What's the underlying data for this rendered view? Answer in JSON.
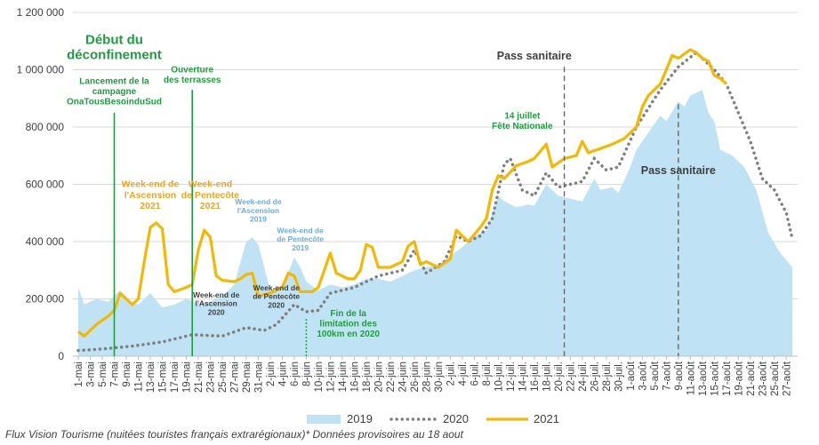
{
  "chart_data": {
    "type": "line",
    "ylim": [
      0,
      1200000
    ],
    "yticks": [
      "0",
      "200 000",
      "400 000",
      "600 000",
      "800 000",
      "1 000 000",
      "1 200 000"
    ],
    "ytick_values": [
      0,
      200000,
      400000,
      600000,
      800000,
      1000000,
      1200000
    ],
    "x_start": "2021-05-01",
    "x_end": "2021-08-28",
    "xtick_labels": [
      "1-mai",
      "3-mai",
      "5-mai",
      "7-mai",
      "9-mai",
      "11-mai",
      "13-mai",
      "15-mai",
      "17-mai",
      "19-mai",
      "21-mai",
      "23-mai",
      "25-mai",
      "27-mai",
      "29-mai",
      "31-mai",
      "2-juin",
      "4-juin",
      "6-juin",
      "8-juin",
      "10-juin",
      "12-juin",
      "14-juin",
      "16-juin",
      "18-juin",
      "20-juin",
      "22-juin",
      "24-juin",
      "26-juin",
      "28-juin",
      "30-juin",
      "2-juil.",
      "4-juil.",
      "6-juil.",
      "8-juil.",
      "10-juil.",
      "12-juil.",
      "14-juil.",
      "16-juil.",
      "18-juil.",
      "20-juil.",
      "22-juil.",
      "24-juil.",
      "26-juil.",
      "28-juil.",
      "30-juil.",
      "1-août",
      "3-août",
      "5-août",
      "7-août",
      "9-août",
      "11-août",
      "13-août",
      "15-août",
      "17-août",
      "19-août",
      "21-août",
      "23-août",
      "25-août",
      "27-août"
    ],
    "series": [
      {
        "name": "2019",
        "style": "area",
        "color": "#bfe3f4",
        "points": [
          [
            "2021-05-01",
            240000
          ],
          [
            "2021-05-02",
            180000
          ],
          [
            "2021-05-04",
            200000
          ],
          [
            "2021-05-06",
            190000
          ],
          [
            "2021-05-08",
            230000
          ],
          [
            "2021-05-09",
            200000
          ],
          [
            "2021-05-11",
            180000
          ],
          [
            "2021-05-13",
            220000
          ],
          [
            "2021-05-15",
            170000
          ],
          [
            "2021-05-17",
            180000
          ],
          [
            "2021-05-19",
            200000
          ],
          [
            "2021-05-21",
            185000
          ],
          [
            "2021-05-23",
            190000
          ],
          [
            "2021-05-25",
            210000
          ],
          [
            "2021-05-27",
            250000
          ],
          [
            "2021-05-29",
            400000
          ],
          [
            "2021-05-30",
            415000
          ],
          [
            "2021-05-31",
            390000
          ],
          [
            "2021-06-02",
            230000
          ],
          [
            "2021-06-04",
            240000
          ],
          [
            "2021-06-06",
            345000
          ],
          [
            "2021-06-07",
            310000
          ],
          [
            "2021-06-08",
            260000
          ],
          [
            "2021-06-10",
            230000
          ],
          [
            "2021-06-12",
            250000
          ],
          [
            "2021-06-14",
            240000
          ],
          [
            "2021-06-16",
            250000
          ],
          [
            "2021-06-18",
            270000
          ],
          [
            "2021-06-20",
            270000
          ],
          [
            "2021-06-22",
            260000
          ],
          [
            "2021-06-24",
            280000
          ],
          [
            "2021-06-26",
            300000
          ],
          [
            "2021-06-28",
            310000
          ],
          [
            "2021-06-30",
            320000
          ],
          [
            "2021-07-02",
            350000
          ],
          [
            "2021-07-04",
            380000
          ],
          [
            "2021-07-06",
            420000
          ],
          [
            "2021-07-08",
            440000
          ],
          [
            "2021-07-10",
            560000
          ],
          [
            "2021-07-11",
            540000
          ],
          [
            "2021-07-13",
            520000
          ],
          [
            "2021-07-15",
            530000
          ],
          [
            "2021-07-16",
            525000
          ],
          [
            "2021-07-18",
            600000
          ],
          [
            "2021-07-20",
            560000
          ],
          [
            "2021-07-22",
            550000
          ],
          [
            "2021-07-24",
            540000
          ],
          [
            "2021-07-26",
            620000
          ],
          [
            "2021-07-27",
            580000
          ],
          [
            "2021-07-29",
            590000
          ],
          [
            "2021-07-30",
            570000
          ],
          [
            "2021-08-01",
            660000
          ],
          [
            "2021-08-02",
            720000
          ],
          [
            "2021-08-04",
            780000
          ],
          [
            "2021-08-06",
            840000
          ],
          [
            "2021-08-07",
            820000
          ],
          [
            "2021-08-09",
            890000
          ],
          [
            "2021-08-10",
            870000
          ],
          [
            "2021-08-11",
            910000
          ],
          [
            "2021-08-13",
            930000
          ],
          [
            "2021-08-14",
            850000
          ],
          [
            "2021-08-15",
            820000
          ],
          [
            "2021-08-16",
            720000
          ],
          [
            "2021-08-18",
            700000
          ],
          [
            "2021-08-20",
            660000
          ],
          [
            "2021-08-22",
            580000
          ],
          [
            "2021-08-24",
            430000
          ],
          [
            "2021-08-26",
            360000
          ],
          [
            "2021-08-28",
            310000
          ]
        ]
      },
      {
        "name": "2020",
        "style": "dotted",
        "color": "#7f7f7f",
        "points": [
          [
            "2021-05-01",
            20000
          ],
          [
            "2021-05-05",
            25000
          ],
          [
            "2021-05-10",
            35000
          ],
          [
            "2021-05-15",
            50000
          ],
          [
            "2021-05-20",
            75000
          ],
          [
            "2021-05-25",
            70000
          ],
          [
            "2021-05-29",
            100000
          ],
          [
            "2021-06-01",
            90000
          ],
          [
            "2021-06-03",
            110000
          ],
          [
            "2021-06-06",
            180000
          ],
          [
            "2021-06-08",
            155000
          ],
          [
            "2021-06-10",
            160000
          ],
          [
            "2021-06-12",
            220000
          ],
          [
            "2021-06-16",
            240000
          ],
          [
            "2021-06-20",
            280000
          ],
          [
            "2021-06-24",
            300000
          ],
          [
            "2021-06-26",
            370000
          ],
          [
            "2021-06-28",
            290000
          ],
          [
            "2021-07-01",
            330000
          ],
          [
            "2021-07-03",
            420000
          ],
          [
            "2021-07-05",
            400000
          ],
          [
            "2021-07-07",
            420000
          ],
          [
            "2021-07-09",
            480000
          ],
          [
            "2021-07-11",
            670000
          ],
          [
            "2021-07-12",
            690000
          ],
          [
            "2021-07-14",
            580000
          ],
          [
            "2021-07-16",
            560000
          ],
          [
            "2021-07-18",
            640000
          ],
          [
            "2021-07-20",
            590000
          ],
          [
            "2021-07-24",
            610000
          ],
          [
            "2021-07-26",
            690000
          ],
          [
            "2021-07-28",
            650000
          ],
          [
            "2021-07-30",
            660000
          ],
          [
            "2021-08-02",
            800000
          ],
          [
            "2021-08-06",
            930000
          ],
          [
            "2021-08-09",
            1010000
          ],
          [
            "2021-08-12",
            1060000
          ],
          [
            "2021-08-15",
            1000000
          ],
          [
            "2021-08-17",
            950000
          ],
          [
            "2021-08-19",
            850000
          ],
          [
            "2021-08-21",
            750000
          ],
          [
            "2021-08-23",
            620000
          ],
          [
            "2021-08-25",
            580000
          ],
          [
            "2021-08-27",
            500000
          ],
          [
            "2021-08-28",
            410000
          ]
        ]
      },
      {
        "name": "2021",
        "style": "line",
        "color": "#f5b800",
        "points": [
          [
            "2021-05-01",
            85000
          ],
          [
            "2021-05-02",
            70000
          ],
          [
            "2021-05-04",
            110000
          ],
          [
            "2021-05-06",
            140000
          ],
          [
            "2021-05-07",
            160000
          ],
          [
            "2021-05-08",
            220000
          ],
          [
            "2021-05-10",
            180000
          ],
          [
            "2021-05-11",
            200000
          ],
          [
            "2021-05-12",
            330000
          ],
          [
            "2021-05-13",
            450000
          ],
          [
            "2021-05-14",
            465000
          ],
          [
            "2021-05-15",
            445000
          ],
          [
            "2021-05-16",
            250000
          ],
          [
            "2021-05-17",
            225000
          ],
          [
            "2021-05-19",
            240000
          ],
          [
            "2021-05-20",
            250000
          ],
          [
            "2021-05-21",
            370000
          ],
          [
            "2021-05-22",
            440000
          ],
          [
            "2021-05-23",
            415000
          ],
          [
            "2021-05-24",
            280000
          ],
          [
            "2021-05-25",
            265000
          ],
          [
            "2021-05-27",
            260000
          ],
          [
            "2021-05-28",
            270000
          ],
          [
            "2021-05-29",
            285000
          ],
          [
            "2021-05-30",
            290000
          ],
          [
            "2021-05-31",
            210000
          ],
          [
            "2021-06-02",
            220000
          ],
          [
            "2021-06-04",
            240000
          ],
          [
            "2021-06-05",
            290000
          ],
          [
            "2021-06-06",
            280000
          ],
          [
            "2021-06-07",
            225000
          ],
          [
            "2021-06-09",
            225000
          ],
          [
            "2021-06-10",
            240000
          ],
          [
            "2021-06-11",
            300000
          ],
          [
            "2021-06-12",
            360000
          ],
          [
            "2021-06-13",
            290000
          ],
          [
            "2021-06-15",
            270000
          ],
          [
            "2021-06-16",
            270000
          ],
          [
            "2021-06-17",
            300000
          ],
          [
            "2021-06-18",
            390000
          ],
          [
            "2021-06-19",
            380000
          ],
          [
            "2021-06-20",
            310000
          ],
          [
            "2021-06-22",
            310000
          ],
          [
            "2021-06-24",
            330000
          ],
          [
            "2021-06-25",
            385000
          ],
          [
            "2021-06-26",
            400000
          ],
          [
            "2021-06-27",
            320000
          ],
          [
            "2021-06-28",
            330000
          ],
          [
            "2021-06-30",
            310000
          ],
          [
            "2021-07-02",
            340000
          ],
          [
            "2021-07-03",
            440000
          ],
          [
            "2021-07-04",
            420000
          ],
          [
            "2021-07-05",
            400000
          ],
          [
            "2021-07-07",
            450000
          ],
          [
            "2021-07-08",
            480000
          ],
          [
            "2021-07-09",
            580000
          ],
          [
            "2021-07-10",
            630000
          ],
          [
            "2021-07-11",
            620000
          ],
          [
            "2021-07-13",
            665000
          ],
          [
            "2021-07-15",
            680000
          ],
          [
            "2021-07-16",
            690000
          ],
          [
            "2021-07-18",
            740000
          ],
          [
            "2021-07-19",
            660000
          ],
          [
            "2021-07-21",
            690000
          ],
          [
            "2021-07-23",
            700000
          ],
          [
            "2021-07-24",
            750000
          ],
          [
            "2021-07-25",
            710000
          ],
          [
            "2021-07-27",
            725000
          ],
          [
            "2021-07-29",
            740000
          ],
          [
            "2021-07-31",
            760000
          ],
          [
            "2021-08-02",
            800000
          ],
          [
            "2021-08-03",
            870000
          ],
          [
            "2021-08-04",
            910000
          ],
          [
            "2021-08-06",
            950000
          ],
          [
            "2021-08-07",
            1000000
          ],
          [
            "2021-08-08",
            1050000
          ],
          [
            "2021-08-09",
            1040000
          ],
          [
            "2021-08-11",
            1070000
          ],
          [
            "2021-08-12",
            1060000
          ],
          [
            "2021-08-13",
            1040000
          ],
          [
            "2021-08-14",
            1030000
          ],
          [
            "2021-08-15",
            980000
          ],
          [
            "2021-08-16",
            970000
          ],
          [
            "2021-08-17",
            950000
          ]
        ]
      }
    ],
    "annotations": [
      {
        "lines": [
          "Début du",
          "déconfinement"
        ],
        "color": "#1e9e3e",
        "size": 15,
        "anchor_date": "2021-05-07",
        "anchor_y": 1090000
      },
      {
        "lines": [
          "Lancement de la",
          "campagne",
          "OnaTousBesoinduSud"
        ],
        "color": "#1e9e3e",
        "size": 10,
        "anchor_date": "2021-05-07",
        "anchor_y": 950000
      },
      {
        "lines": [
          "Ouverture",
          "des terrasses"
        ],
        "color": "#1e9e3e",
        "size": 10,
        "anchor_date": "2021-05-20",
        "anchor_y": 990000
      },
      {
        "lines": [
          "Week-end de",
          "l'Ascension",
          "2021"
        ],
        "color": "#f0a51a",
        "size": 10.5,
        "anchor_date": "2021-05-13",
        "anchor_y": 590000
      },
      {
        "lines": [
          "Week-end",
          "de Pentecôte",
          "2021"
        ],
        "color": "#f0a51a",
        "size": 10.5,
        "anchor_date": "2021-05-23",
        "anchor_y": 590000
      },
      {
        "lines": [
          "Week-end de",
          "l'Ascension",
          "2019"
        ],
        "color": "#6aaed6",
        "size": 8.5,
        "anchor_date": "2021-05-31",
        "anchor_y": 530000
      },
      {
        "lines": [
          "Week-end de",
          "de Pentecôte",
          "2019"
        ],
        "color": "#6aaed6",
        "size": 8.5,
        "anchor_date": "2021-06-07",
        "anchor_y": 430000
      },
      {
        "lines": [
          "Week-end de",
          "l'Ascension",
          "2020"
        ],
        "color": "#404040",
        "size": 8.5,
        "anchor_date": "2021-05-24",
        "anchor_y": 205000
      },
      {
        "lines": [
          "Week-end de",
          "de Pentecôte",
          "2020"
        ],
        "color": "#404040",
        "size": 8.5,
        "anchor_date": "2021-06-03",
        "anchor_y": 230000
      },
      {
        "lines": [
          "Fin de la",
          "limitation des",
          "100km en 2020"
        ],
        "color": "#1e9e3e",
        "size": 10,
        "anchor_date": "2021-06-15",
        "anchor_y": 140000
      },
      {
        "lines": [
          "14 juillet",
          "Fête Nationale"
        ],
        "color": "#1e9e3e",
        "size": 10,
        "anchor_date": "2021-07-14",
        "anchor_y": 830000
      },
      {
        "lines": [
          "Pass sanitaire"
        ],
        "color": "#404040",
        "size": 12.5,
        "anchor_date": "2021-07-16",
        "anchor_y": 1035000
      },
      {
        "lines": [
          "Pass sanitaire"
        ],
        "color": "#404040",
        "size": 12.5,
        "anchor_date": "2021-08-09",
        "anchor_y": 635000
      }
    ],
    "vlines": [
      {
        "date": "2021-05-07",
        "color": "#1e9e3e",
        "style": "solid",
        "y_top": 850000
      },
      {
        "date": "2021-05-20",
        "color": "#1e9e3e",
        "style": "solid",
        "y_top": 930000
      },
      {
        "date": "2021-06-08",
        "color": "#1e9e3e",
        "style": "dotted",
        "y_top": 130000
      },
      {
        "date": "2021-07-21",
        "color": "#666666",
        "style": "dashed",
        "y_top": 1010000
      },
      {
        "date": "2021-08-09",
        "color": "#666666",
        "style": "dashed",
        "y_top": 880000
      }
    ],
    "legend": {
      "position": "bottom-center",
      "items": [
        "2019",
        "2020",
        "2021"
      ]
    },
    "source_note": "Flux Vision Tourisme (nuitées touristes français extrarégionaux)* Données provisoires au 18 aout"
  }
}
